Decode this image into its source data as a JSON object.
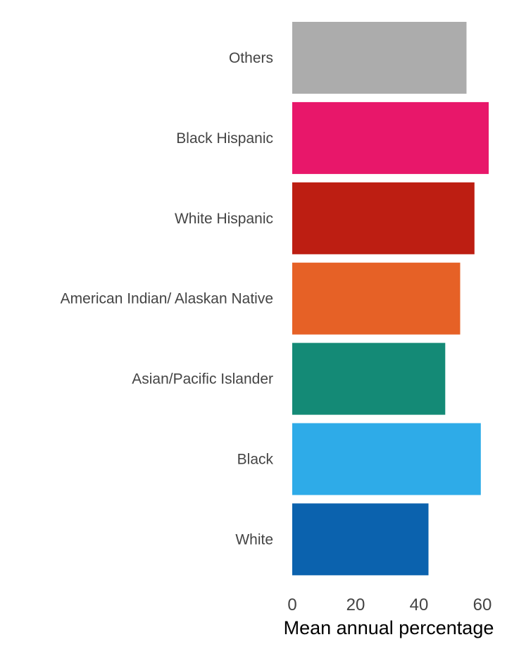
{
  "chart_data": {
    "type": "bar",
    "orientation": "horizontal",
    "categories": [
      "Others",
      "Black Hispanic",
      "White Hispanic",
      "American Indian/ Alaskan Native",
      "Asian/Pacific Islander",
      "Black",
      "White"
    ],
    "values": [
      55,
      62,
      57.5,
      53,
      48.3,
      59.5,
      43
    ],
    "colors": [
      "#acacac",
      "#e8176a",
      "#bd1e12",
      "#e66126",
      "#148a76",
      "#2eabe8",
      "#0b62ae"
    ],
    "xlabel": "Mean annual percentage",
    "ylabel": "",
    "xticks": [
      "0",
      "20",
      "40",
      "60"
    ],
    "xlim": [
      0,
      65
    ],
    "grid": false,
    "legend": "none"
  }
}
